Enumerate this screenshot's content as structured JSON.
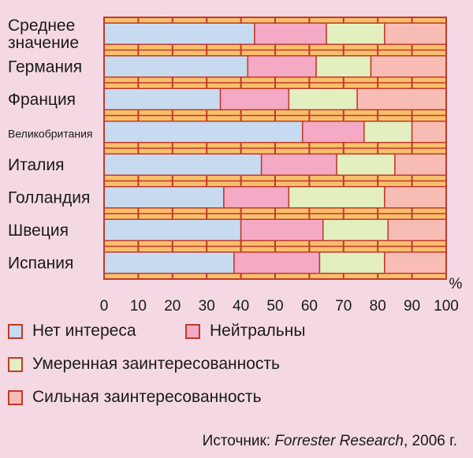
{
  "chart_data": {
    "type": "bar",
    "orientation": "horizontal",
    "stacked": true,
    "unit": "%",
    "xlim": [
      0,
      100
    ],
    "xticks": [
      "0",
      "10",
      "20",
      "30",
      "40",
      "50",
      "60",
      "70",
      "80",
      "90",
      "100"
    ],
    "categories": [
      [
        "Среднее",
        "значение"
      ],
      [
        "Германия"
      ],
      [
        "Франция"
      ],
      [
        "Великобритания"
      ],
      [
        "Италия"
      ],
      [
        "Голландия"
      ],
      [
        "Швеция"
      ],
      [
        "Испания"
      ]
    ],
    "series": [
      {
        "name": "Нет интереса",
        "color": "#c8daf0",
        "values": [
          44,
          42,
          34,
          58,
          46,
          35,
          40,
          38
        ]
      },
      {
        "name": "Нейтральны",
        "color": "#f4a9c4",
        "values": [
          21,
          20,
          20,
          18,
          22,
          19,
          24,
          25
        ]
      },
      {
        "name": "Умеренная заинтересованность",
        "color": "#e3efbf",
        "values": [
          17,
          16,
          20,
          14,
          17,
          28,
          19,
          19
        ]
      },
      {
        "name": "Сильная заинтересованность",
        "color": "#f7bdb4",
        "values": [
          18,
          22,
          26,
          10,
          15,
          18,
          17,
          18
        ]
      }
    ],
    "grid": true,
    "legend_position": "bottom"
  },
  "colors": {
    "background": "#f4d8e4",
    "plot_stripe": "#f9c06b",
    "grid": "#c0392b",
    "bar_border": "#c0392b"
  },
  "source": {
    "prefix": "Источник: ",
    "name": "Forrester Research",
    "suffix": ", 2006 г."
  }
}
